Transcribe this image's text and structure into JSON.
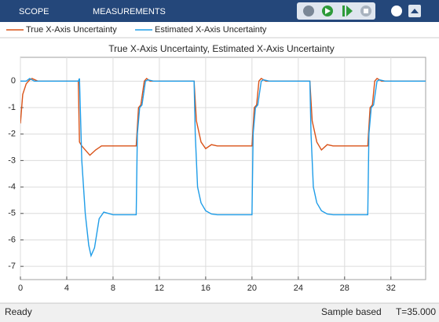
{
  "toolbar": {
    "tabs": [
      "SCOPE",
      "MEASUREMENTS"
    ]
  },
  "status": {
    "state": "Ready",
    "mode": "Sample based",
    "time": "T=35.000"
  },
  "chart_data": {
    "type": "line",
    "title": "True X-Axis Uncertainty, Estimated X-Axis Uncertainty",
    "xlim": [
      0,
      35
    ],
    "ylim": [
      -7.5,
      0.9
    ],
    "xticks": [
      0,
      4,
      8,
      12,
      16,
      20,
      24,
      28,
      32
    ],
    "yticks": [
      0,
      -1,
      -2,
      -3,
      -4,
      -5,
      -6,
      -7
    ],
    "grid": true,
    "series": [
      {
        "name": "True X-Axis Uncertainty",
        "color": "#d95319",
        "x": [
          0,
          0.2,
          0.5,
          0.8,
          1.0,
          1.5,
          5.0,
          5.1,
          5.3,
          5.6,
          6.0,
          6.5,
          7.0,
          7.5,
          10.0,
          10.2,
          10.4,
          10.7,
          10.9,
          11.2,
          11.5,
          15.0,
          15.2,
          15.6,
          16.0,
          16.5,
          17.0,
          20.0,
          20.2,
          20.4,
          20.6,
          20.8,
          21.2,
          25.0,
          25.2,
          25.6,
          26.0,
          26.5,
          27.0,
          30.0,
          30.2,
          30.4,
          30.6,
          30.8,
          31.2,
          35
        ],
        "values": [
          -1.6,
          -0.5,
          -0.1,
          0.05,
          0.1,
          0,
          0,
          -2.3,
          -2.45,
          -2.6,
          -2.8,
          -2.6,
          -2.45,
          -2.45,
          -2.45,
          -1.0,
          -0.9,
          0,
          0.1,
          0,
          0,
          0,
          -1.5,
          -2.3,
          -2.55,
          -2.4,
          -2.45,
          -2.45,
          -1.0,
          -0.9,
          0,
          0.1,
          0,
          0,
          -1.5,
          -2.3,
          -2.6,
          -2.4,
          -2.45,
          -2.45,
          -1.0,
          -0.9,
          0,
          0.1,
          0,
          0
        ]
      },
      {
        "name": "Estimated X-Axis Uncertainty",
        "color": "#1f9de8",
        "x": [
          0,
          0.5,
          0.8,
          1.2,
          5.0,
          5.1,
          5.3,
          5.6,
          5.9,
          6.1,
          6.4,
          6.8,
          7.2,
          8.0,
          10.0,
          10.1,
          10.3,
          10.5,
          10.8,
          11.0,
          11.5,
          15.0,
          15.1,
          15.3,
          15.6,
          16.0,
          16.5,
          17.0,
          20.0,
          20.1,
          20.3,
          20.5,
          20.8,
          21.0,
          21.5,
          25.0,
          25.1,
          25.3,
          25.6,
          26.0,
          26.5,
          27.0,
          30.0,
          30.1,
          30.3,
          30.5,
          30.8,
          31.0,
          31.5,
          35
        ],
        "values": [
          0,
          0,
          0.1,
          0,
          0,
          0.1,
          -3,
          -5,
          -6.2,
          -6.6,
          -6.3,
          -5.2,
          -4.95,
          -5.05,
          -5.05,
          -2,
          -1,
          -0.9,
          0,
          0.05,
          0,
          0,
          -2,
          -4,
          -4.6,
          -4.9,
          -5.02,
          -5.05,
          -5.05,
          -2,
          -1,
          -0.9,
          0,
          0.05,
          0,
          0,
          -2,
          -4,
          -4.6,
          -4.9,
          -5.02,
          -5.05,
          -5.05,
          -2,
          -1,
          -0.9,
          0,
          0.05,
          0,
          0
        ]
      }
    ]
  }
}
